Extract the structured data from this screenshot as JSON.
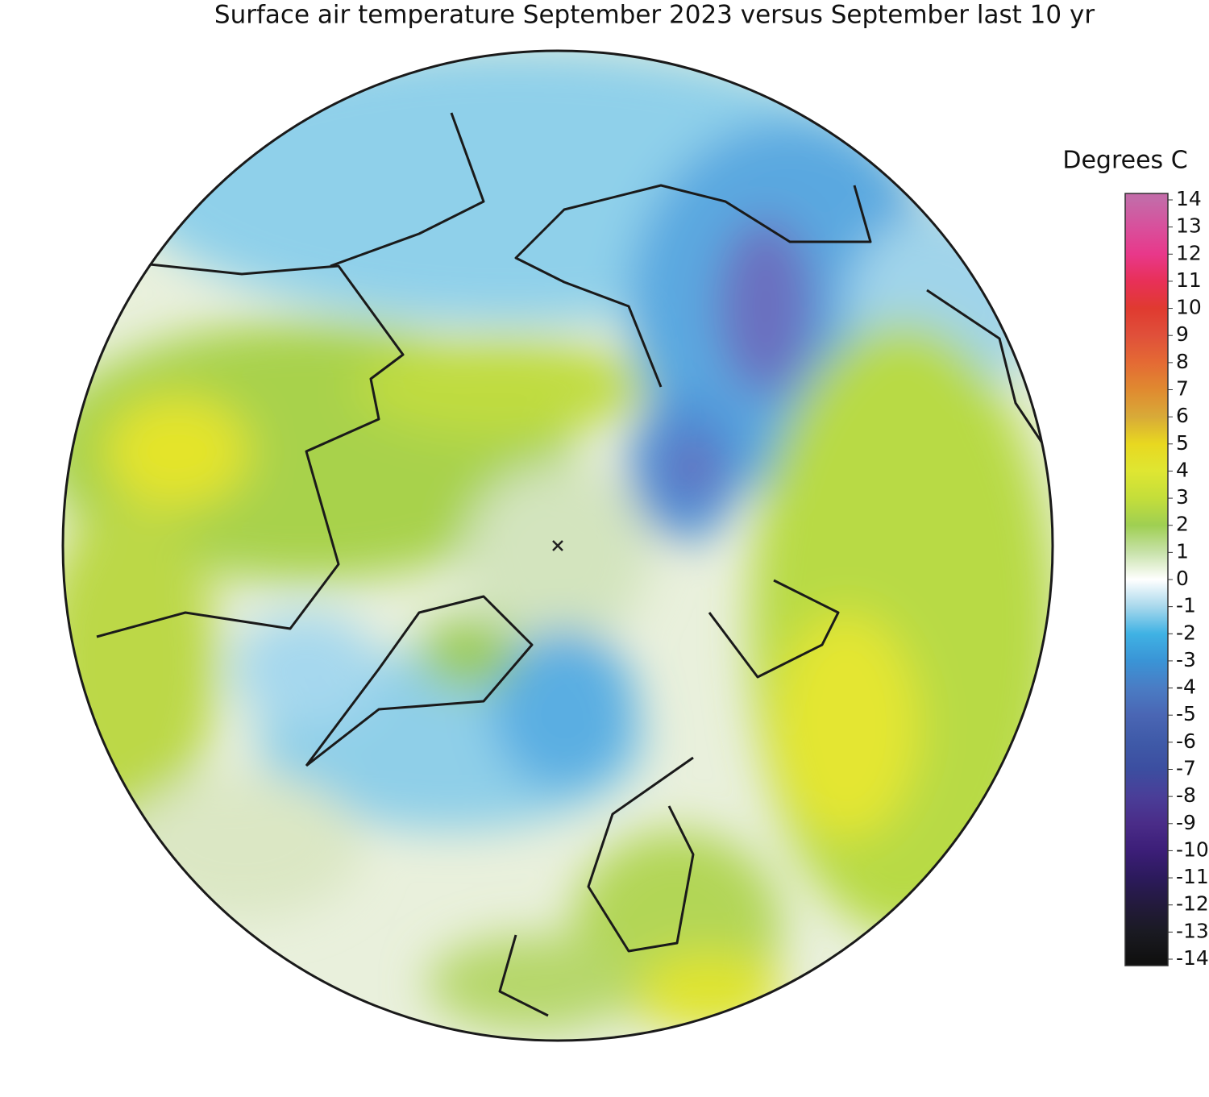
{
  "title": "Surface air temperature September 2023 versus September last 10 yr",
  "legend": {
    "label": "Degrees C",
    "ticks": [
      14,
      13,
      12,
      11,
      10,
      9,
      8,
      7,
      6,
      5,
      4,
      3,
      2,
      1,
      0,
      -1,
      -2,
      -3,
      -4,
      -5,
      -6,
      -7,
      -8,
      -9,
      -10,
      -11,
      -12,
      -13,
      -14
    ],
    "colors": [
      "#c46aa8",
      "#d8509c",
      "#e8388a",
      "#e83058",
      "#e03a30",
      "#e0503a",
      "#e46a34",
      "#e08a30",
      "#d8aa38",
      "#e8d820",
      "#dfe632",
      "#c4de3a",
      "#9fcf52",
      "#c8e2aa",
      "#ffffff",
      "#a8d8ec",
      "#3fb2e4",
      "#3a94d6",
      "#4a7cc4",
      "#4a66b4",
      "#3f5aa8",
      "#3c4ea0",
      "#4a3e98",
      "#4a2c88",
      "#3c1e78",
      "#2c1a5c",
      "#231a3c",
      "#1a1a22",
      "#111111"
    ]
  }
}
